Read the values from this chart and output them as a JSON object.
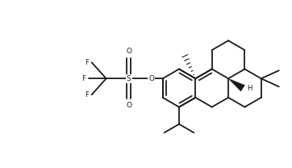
{
  "background": "#ffffff",
  "line_color": "#1a1a1a",
  "line_width": 1.3,
  "label_fontsize": 6.5,
  "figsize": [
    3.62,
    2.08
  ],
  "dpi": 100,
  "xlim": [
    0,
    3.62
  ],
  "ylim": [
    0,
    2.08
  ]
}
